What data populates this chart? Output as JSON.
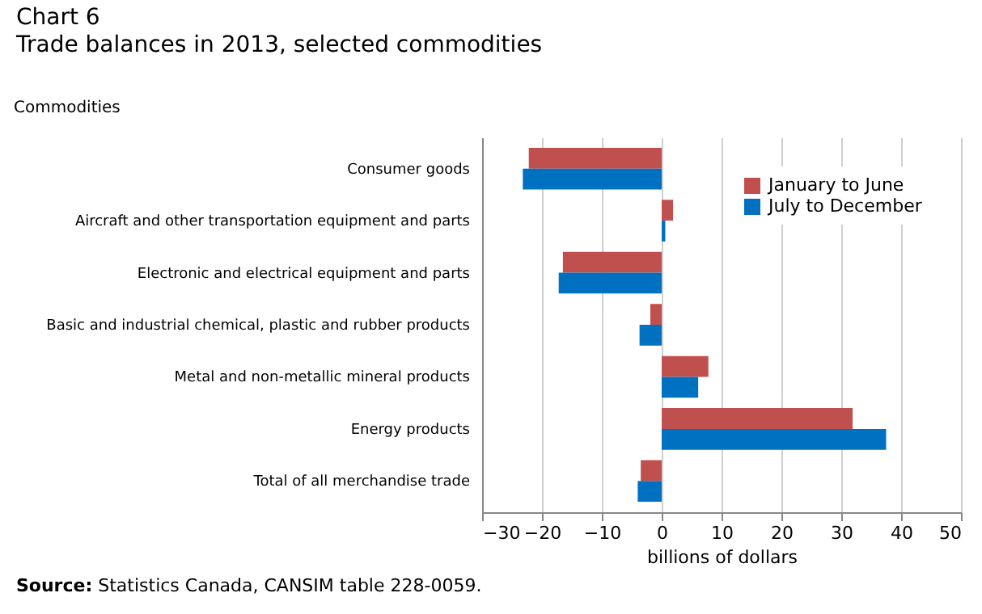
{
  "chart_data": {
    "type": "bar",
    "orientation": "horizontal",
    "title": "Chart 6",
    "subtitle": "Trade balances in 2013, selected commodities",
    "ylabel": "Commodities",
    "xlabel": "billions of dollars",
    "categories": [
      "Consumer goods",
      "Aircraft and other transportation equipment and parts",
      "Electronic and electrical equipment and parts",
      "Basic and industrial chemical, plastic and rubber products",
      "Metal and non-metallic mineral products",
      "Energy products",
      "Total of all merchandise trade"
    ],
    "series": [
      {
        "name": "January to June",
        "color": "#c0504d",
        "values": [
          -22.2,
          1.9,
          -16.5,
          -1.9,
          7.8,
          31.9,
          -3.5
        ]
      },
      {
        "name": "July to December",
        "color": "#0070c0",
        "values": [
          -23.2,
          0.6,
          -17.2,
          -3.7,
          6.1,
          37.5,
          -4.0
        ]
      }
    ],
    "xlim": [
      -30,
      50
    ],
    "xticks": [
      -30,
      -20,
      -10,
      0,
      10,
      20,
      30,
      40,
      50
    ],
    "grid": "x",
    "legend": "top right",
    "annotations": [
      "Source: Statistics Canada, CANSIM table 228-0059."
    ]
  }
}
